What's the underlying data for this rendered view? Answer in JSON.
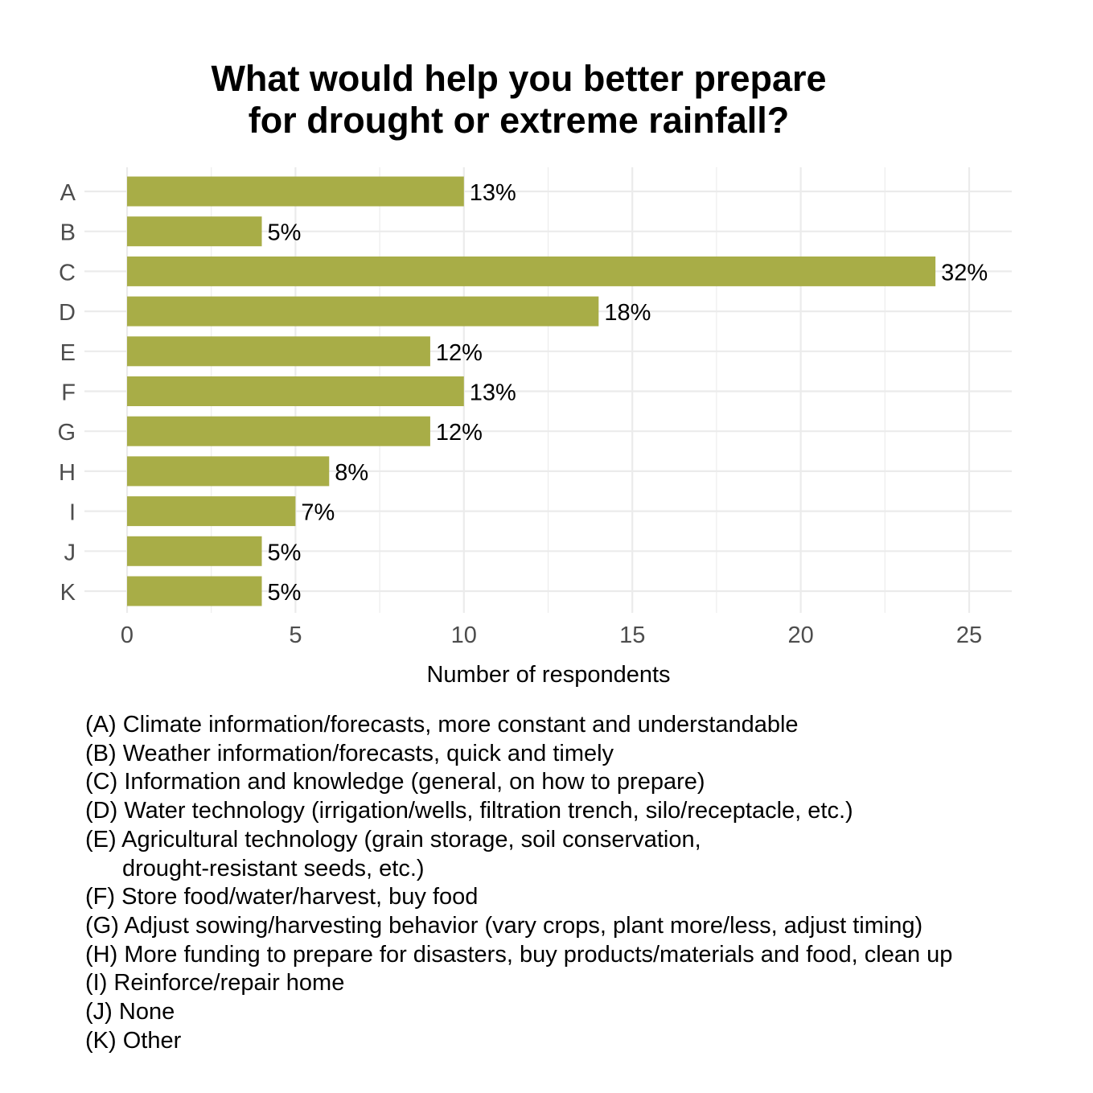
{
  "chart_data": {
    "type": "bar",
    "orientation": "horizontal",
    "title": "What would help you better prepare\nfor drought or extreme rainfall?",
    "title_lines": [
      "What would help you better prepare",
      "for drought or extreme rainfall?"
    ],
    "xlabel": "Number of respondents",
    "ylabel": "",
    "categories": [
      "A",
      "B",
      "C",
      "D",
      "E",
      "F",
      "G",
      "H",
      "I",
      "J",
      "K"
    ],
    "values": [
      10,
      4,
      24,
      14,
      9,
      10,
      9,
      6,
      5,
      4,
      4
    ],
    "data_labels": [
      "13%",
      "5%",
      "32%",
      "18%",
      "12%",
      "13%",
      "12%",
      "8%",
      "7%",
      "5%",
      "5%"
    ],
    "xlim": [
      0,
      26.2
    ],
    "xticks": [
      0,
      5,
      10,
      15,
      20,
      25
    ],
    "xtick_labels": [
      "0",
      "5",
      "10",
      "15",
      "20",
      "25"
    ],
    "grid": true,
    "bar_color": "#A8AD47",
    "legend": [
      [
        "(A) Climate information/forecasts, more constant and understandable"
      ],
      [
        "(B) Weather information/forecasts, quick and timely"
      ],
      [
        "(C) Information and knowledge (general, on how to prepare)"
      ],
      [
        "(D) Water technology (irrigation/wells, filtration trench, silo/receptacle, etc.)"
      ],
      [
        "(E) Agricultural technology (grain storage, soil conservation,",
        "drought-resistant seeds, etc.)"
      ],
      [
        "(F) Store food/water/harvest, buy food"
      ],
      [
        "(G) Adjust sowing/harvesting behavior (vary crops, plant more/less, adjust timing)"
      ],
      [
        "(H) More funding to prepare for disasters, buy products/materials and food, clean up"
      ],
      [
        "(I) Reinforce/repair home"
      ],
      [
        "(J) None"
      ],
      [
        "(K) Other"
      ]
    ]
  }
}
